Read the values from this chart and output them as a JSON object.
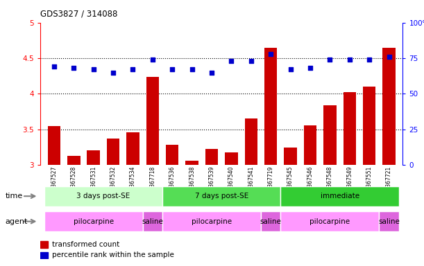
{
  "title": "GDS3827 / 314088",
  "samples": [
    "GSM367527",
    "GSM367528",
    "GSM367531",
    "GSM367532",
    "GSM367534",
    "GSM367718",
    "GSM367536",
    "GSM367538",
    "GSM367539",
    "GSM367540",
    "GSM367541",
    "GSM367719",
    "GSM367545",
    "GSM367546",
    "GSM367548",
    "GSM367549",
    "GSM367551",
    "GSM367721"
  ],
  "transformed_count": [
    3.55,
    3.13,
    3.21,
    3.37,
    3.46,
    4.24,
    3.28,
    3.06,
    3.22,
    3.18,
    3.65,
    4.65,
    3.24,
    3.56,
    3.84,
    4.02,
    4.1,
    4.65
  ],
  "percentile_rank": [
    69,
    68,
    67,
    65,
    67,
    74,
    67,
    67,
    65,
    73,
    73,
    78,
    67,
    68,
    74,
    74,
    74,
    76
  ],
  "bar_color": "#cc0000",
  "dot_color": "#0000cc",
  "ylim_left": [
    3.0,
    5.0
  ],
  "ylim_right": [
    0,
    100
  ],
  "yticks_left": [
    3.0,
    3.5,
    4.0,
    4.5,
    5.0
  ],
  "ytick_labels_left": [
    "3",
    "3.5",
    "4",
    "4.5",
    "5"
  ],
  "yticks_right": [
    0,
    25,
    50,
    75,
    100
  ],
  "ytick_labels_right": [
    "0",
    "25",
    "50",
    "75",
    "100%"
  ],
  "dotted_lines": [
    3.5,
    4.0,
    4.5
  ],
  "time_groups": [
    {
      "label": "3 days post-SE",
      "start": 0,
      "end": 5,
      "color": "#ccffcc"
    },
    {
      "label": "7 days post-SE",
      "start": 6,
      "end": 11,
      "color": "#55dd55"
    },
    {
      "label": "immediate",
      "start": 12,
      "end": 17,
      "color": "#33cc33"
    }
  ],
  "agent_groups": [
    {
      "label": "pilocarpine",
      "start": 0,
      "end": 4,
      "color": "#ff99ff"
    },
    {
      "label": "saline",
      "start": 5,
      "end": 5,
      "color": "#dd66dd"
    },
    {
      "label": "pilocarpine",
      "start": 6,
      "end": 10,
      "color": "#ff99ff"
    },
    {
      "label": "saline",
      "start": 11,
      "end": 11,
      "color": "#dd66dd"
    },
    {
      "label": "pilocarpine",
      "start": 12,
      "end": 16,
      "color": "#ff99ff"
    },
    {
      "label": "saline",
      "start": 17,
      "end": 17,
      "color": "#dd66dd"
    }
  ],
  "legend_bar_label": "transformed count",
  "legend_dot_label": "percentile rank within the sample",
  "time_label": "time",
  "agent_label": "agent",
  "bar_bottom": 3.0,
  "background_color": "#ffffff",
  "xticklabel_fontsize": 5.5,
  "yticklabel_fontsize": 7.5
}
